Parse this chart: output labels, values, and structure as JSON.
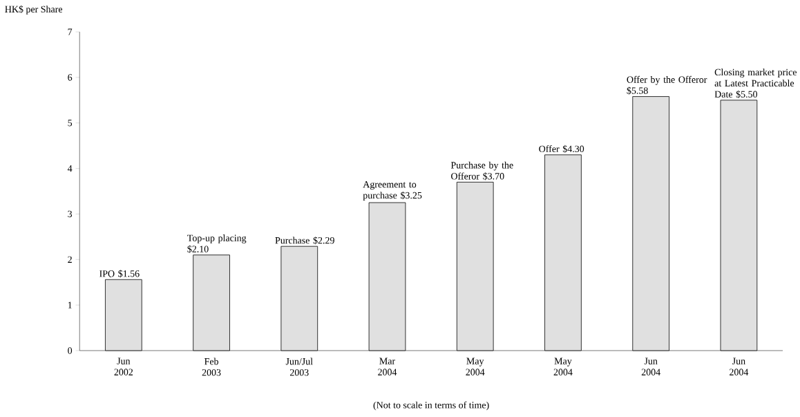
{
  "chart_data": {
    "type": "bar",
    "ylabel": "HK$ per Share",
    "categories": [
      "Jun 2002",
      "Feb 2003",
      "Jun/Jul 2003",
      "Mar 2004",
      "May 2004",
      "May 2004",
      "Jun 2004",
      "Jun 2004"
    ],
    "values": [
      1.56,
      2.1,
      2.29,
      3.25,
      3.7,
      4.3,
      5.58,
      5.5
    ],
    "value_labels": [
      "IPO $1.56",
      "Top-up placing $2.10",
      "Purchase $2.29",
      "Agreement to purchase $3.25",
      "Purchase by the Offeror $3.70",
      "Offer $4.30",
      "Offer by the Offeror $5.58",
      "Closing market price at Latest Practicable Date $5.50"
    ],
    "color": "#e0e0e0",
    "ylim": [
      0,
      7
    ],
    "yticks": [
      0,
      1,
      2,
      3,
      4,
      5,
      6,
      7
    ],
    "annotations": [
      "(Not to scale in terms of time)"
    ]
  }
}
